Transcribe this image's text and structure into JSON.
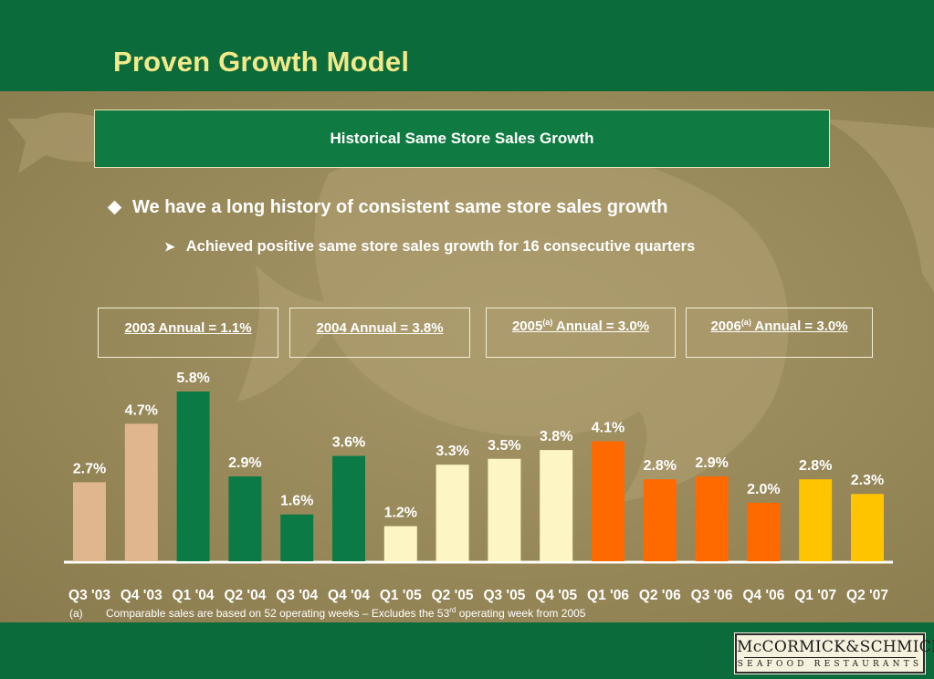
{
  "title": "Proven Growth Model",
  "subtitle": "Historical Same Store Sales Growth",
  "bullets": {
    "main": "We have a long history of consistent same store sales growth",
    "sub": "Achieved positive same store sales growth for 16 consecutive quarters"
  },
  "annual_boxes": [
    {
      "year": "2003",
      "sup": "",
      "text": " Annual = 1.1%"
    },
    {
      "year": "2004",
      "sup": "",
      "text": " Annual = 3.8%"
    },
    {
      "year": "2005",
      "sup": "(a)",
      "text": " Annual = 3.0%"
    },
    {
      "year": "2006",
      "sup": "(a)",
      "text": " Annual = 3.0%"
    }
  ],
  "footnote": {
    "marker": "(a)",
    "text_before": "Comparable sales are based on 52 operating weeks – Excludes the 53",
    "sup": "rd",
    "text_after": " operating week from 2005"
  },
  "logo": {
    "line1": "McCORMICK&SCHMICK'S",
    "line2": "SEAFOOD RESTAURANTS"
  },
  "colors": {
    "header_band": "#0c6b3a",
    "title_text": "#f2e98a",
    "bar_2003": "#dfb68e",
    "bar_2004": "#0c7a44",
    "bar_2005": "#fdf6c4",
    "bar_2006": "#ff6a00",
    "bar_2007": "#ffc400"
  },
  "chart_data": {
    "type": "bar",
    "title": "",
    "xlabel": "",
    "ylabel": "",
    "ylim": [
      0,
      6.5
    ],
    "grid": false,
    "legend": "none",
    "categories": [
      "Q3 '03",
      "Q4 '03",
      "Q1 '04",
      "Q2 '04",
      "Q3 '04",
      "Q4 '04",
      "Q1 '05",
      "Q2 '05",
      "Q3 '05",
      "Q4 '05",
      "Q1 '06",
      "Q2 '06",
      "Q3 '06",
      "Q4 '06",
      "Q1 '07",
      "Q2 '07"
    ],
    "values": [
      2.7,
      4.7,
      5.8,
      2.9,
      1.6,
      3.6,
      1.2,
      3.3,
      3.5,
      3.8,
      4.1,
      2.8,
      2.9,
      2.0,
      2.8,
      2.3
    ],
    "data_labels": [
      "2.7%",
      "4.7%",
      "5.8%",
      "2.9%",
      "1.6%",
      "3.6%",
      "1.2%",
      "3.3%",
      "3.5%",
      "3.8%",
      "4.1%",
      "2.8%",
      "2.9%",
      "2.0%",
      "2.8%",
      "2.3%"
    ],
    "bar_colors": [
      "#dfb68e",
      "#dfb68e",
      "#0c7a44",
      "#0c7a44",
      "#0c7a44",
      "#0c7a44",
      "#fdf6c4",
      "#fdf6c4",
      "#fdf6c4",
      "#fdf6c4",
      "#ff6a00",
      "#ff6a00",
      "#ff6a00",
      "#ff6a00",
      "#ffc400",
      "#ffc400"
    ]
  }
}
